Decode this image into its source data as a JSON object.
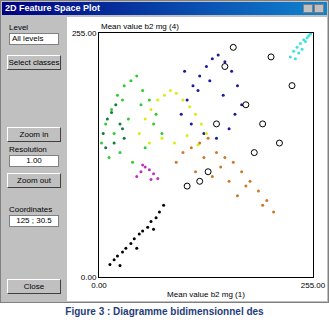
{
  "window": {
    "title": "2D Feature Space Plot",
    "controls": {
      "level_label": "Level",
      "level_value": "All levels",
      "select_button": "Select classes",
      "zoom_in_button": "Zoom in",
      "resolution_label": "Resolution",
      "resolution_value": "1.00",
      "zoom_out_button": "Zoom out",
      "coordinates_label": "Coordinates",
      "coordinates_value": "125 ; 30.5",
      "close_button": "Close"
    }
  },
  "caption": "Figure 3 : Diagramme bidimensionnel des",
  "chart_data": {
    "type": "scatter",
    "x_label": "Mean value b2 mg (1)",
    "y_label": "Mean value b2 mg (4)",
    "xlim": [
      0,
      255
    ],
    "ylim": [
      0,
      255
    ],
    "xticks": [
      {
        "value": 0,
        "label": "0.00"
      },
      {
        "value": 255,
        "label": "255.00"
      }
    ],
    "yticks": [
      {
        "value": 0,
        "label": "0.00"
      },
      {
        "value": 255,
        "label": "255.00"
      }
    ],
    "grid": false,
    "series": [
      {
        "color": "#40e0e0",
        "marker": "circle",
        "x": [
          228,
          232,
          236,
          240,
          244,
          248,
          250,
          238,
          242,
          246,
          234,
          252
        ],
        "values": [
          230,
          236,
          240,
          244,
          248,
          250,
          252,
          234,
          238,
          246,
          228,
          254
        ]
      },
      {
        "color": "#1a1a9a",
        "marker": "circle",
        "x": [
          98,
          105,
          112,
          120,
          128,
          135,
          142,
          150,
          158,
          165,
          170,
          110,
          125,
          140,
          155,
          118,
          132,
          148,
          162,
          102
        ],
        "values": [
          170,
          185,
          200,
          210,
          220,
          228,
          232,
          225,
          215,
          200,
          180,
          160,
          150,
          145,
          155,
          195,
          205,
          190,
          170,
          215
        ]
      },
      {
        "color": "#2ecc2e",
        "marker": "circle",
        "x": [
          3,
          8,
          15,
          22,
          30,
          38,
          45,
          52,
          60,
          68,
          75,
          12,
          25,
          40,
          55,
          18,
          35,
          50,
          65,
          28
        ],
        "values": [
          140,
          160,
          175,
          190,
          200,
          205,
          210,
          195,
          185,
          170,
          150,
          125,
          130,
          120,
          135,
          150,
          165,
          180,
          160,
          185
        ]
      },
      {
        "color": "#127a3a",
        "marker": "circle",
        "x": [
          5,
          10,
          15,
          20,
          25,
          30,
          8,
          18,
          28
        ],
        "values": [
          150,
          165,
          172,
          180,
          160,
          145,
          135,
          140,
          155
        ]
      },
      {
        "color": "#d8ee10",
        "marker": "circle",
        "x": [
          48,
          55,
          62,
          70,
          78,
          85,
          92,
          100,
          108,
          115,
          122,
          128,
          60,
          75,
          90,
          105,
          118
        ],
        "values": [
          150,
          165,
          175,
          185,
          190,
          195,
          192,
          185,
          178,
          170,
          160,
          150,
          140,
          145,
          140,
          148,
          138
        ]
      },
      {
        "color": "#c030c0",
        "marker": "circle",
        "x": [
          45,
          50,
          55,
          60,
          65,
          70,
          52,
          62
        ],
        "values": [
          105,
          110,
          115,
          112,
          108,
          103,
          117,
          102
        ]
      },
      {
        "color": "#cc7a2a",
        "marker": "circle",
        "x": [
          92,
          100,
          110,
          120,
          130,
          140,
          150,
          160,
          170,
          180,
          190,
          200,
          208,
          115,
          135,
          155,
          175,
          195,
          125,
          145,
          165
        ],
        "values": [
          120,
          130,
          135,
          140,
          145,
          130,
          125,
          120,
          110,
          100,
          90,
          80,
          68,
          110,
          105,
          100,
          95,
          75,
          125,
          115,
          85
        ]
      },
      {
        "color": "#000000",
        "marker": "circle",
        "x": [
          13,
          18,
          22,
          28,
          32,
          38,
          42,
          48,
          52,
          58,
          62,
          68,
          72,
          77,
          25,
          45,
          65
        ],
        "values": [
          13,
          18,
          22,
          26,
          30,
          35,
          40,
          45,
          48,
          52,
          58,
          62,
          68,
          75,
          12,
          30,
          50
        ]
      },
      {
        "color": "#000000",
        "marker": "circle-open",
        "x": [
          105,
          130,
          150,
          175,
          195,
          215,
          230,
          160,
          185,
          205,
          140,
          120
        ],
        "values": [
          95,
          110,
          220,
          180,
          160,
          140,
          200,
          240,
          130,
          230,
          160,
          100
        ]
      }
    ]
  }
}
